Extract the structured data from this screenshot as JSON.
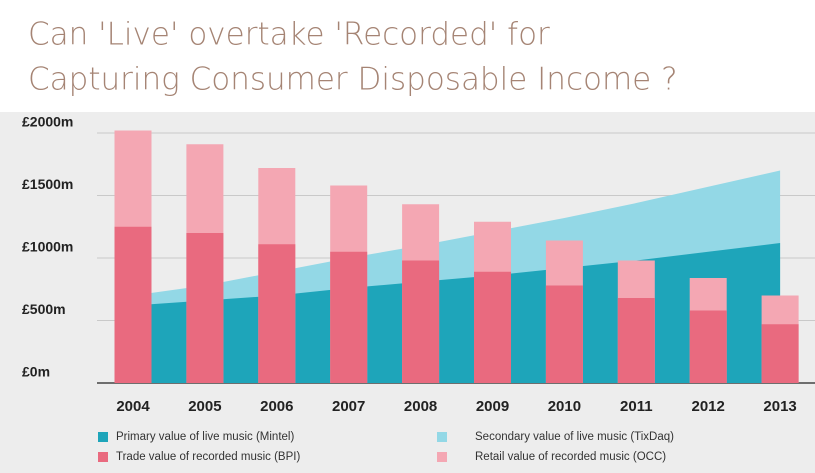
{
  "chart_data": {
    "type": "bar",
    "title": [
      "Can 'Live' overtake 'Recorded' for",
      "Capturing Consumer Disposable Income ?"
    ],
    "categories": [
      "2004",
      "2005",
      "2006",
      "2007",
      "2008",
      "2009",
      "2010",
      "2011",
      "2012",
      "2013"
    ],
    "series": [
      {
        "name": "Primary value of live music (Mintel)",
        "type": "area",
        "color": "#1ea5ba",
        "values": [
          620,
          660,
          700,
          760,
          810,
          860,
          920,
          980,
          1050,
          1120
        ]
      },
      {
        "name": "Secondary value of live music (TixDaq)",
        "type": "area",
        "color": "#93d8e6",
        "values": [
          700,
          780,
          890,
          1000,
          1100,
          1210,
          1320,
          1440,
          1570,
          1700
        ]
      },
      {
        "name": "Trade value of recorded music (BPI)",
        "type": "bar",
        "color": "#e96a7f",
        "values": [
          1250,
          1200,
          1110,
          1050,
          980,
          890,
          780,
          680,
          580,
          470
        ]
      },
      {
        "name": "Retail value of recorded music (OCC)",
        "type": "bar",
        "color": "#f4a7b3",
        "values": [
          2020,
          1910,
          1720,
          1580,
          1430,
          1290,
          1140,
          980,
          840,
          700
        ]
      }
    ],
    "ylim": [
      0,
      2000
    ],
    "yticks": [
      {
        "value": 0,
        "label": "£0m"
      },
      {
        "value": 500,
        "label": "£500m"
      },
      {
        "value": 1000,
        "label": "£1000m"
      },
      {
        "value": 1500,
        "label": "£1500m"
      },
      {
        "value": 2000,
        "label": "£2000m"
      }
    ],
    "grid": true
  }
}
